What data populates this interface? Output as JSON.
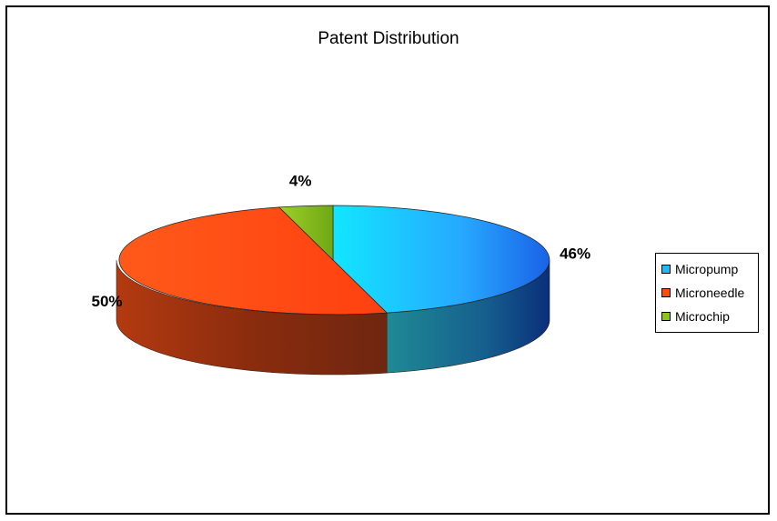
{
  "chart_data": {
    "type": "pie",
    "title": "Patent Distribution",
    "categories": [
      "Micropump",
      "Microneedle",
      "Microchip"
    ],
    "values": [
      46,
      50,
      4
    ],
    "labels": [
      "46%",
      "50%",
      "4%"
    ],
    "colors": {
      "Micropump": "#24b8f0",
      "Microneedle": "#ff4a12",
      "Microchip": "#8cc41c"
    },
    "legend_position": "right"
  }
}
